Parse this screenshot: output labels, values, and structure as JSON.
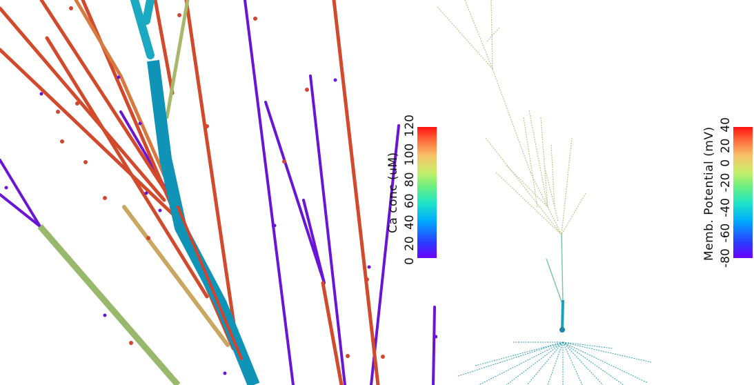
{
  "left_view": {
    "colorbar": {
      "title": "Ca conc (uM)",
      "ticks": [
        "0",
        "20",
        "40",
        "60",
        "80",
        "100",
        "120"
      ]
    }
  },
  "right_view": {
    "colorbar": {
      "title": "Memb. Potential (mV)",
      "ticks": [
        "-80",
        "-60",
        "-40",
        "-20",
        "0",
        "20",
        "40"
      ]
    }
  },
  "colors": {
    "purple": "#6b14d8",
    "orange_red": "#d2442a",
    "teal": "#0f93b6",
    "olive": "#9fbf6e",
    "cell_green": "#a9c07e"
  }
}
